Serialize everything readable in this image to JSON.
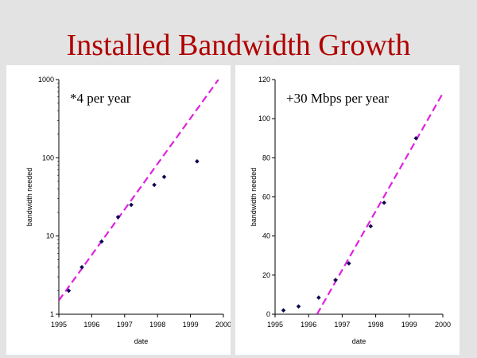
{
  "slide": {
    "title": "Installed Bandwidth Growth"
  },
  "colors": {
    "title": "#b00000",
    "fit_line": "#e020e0",
    "points": "#0a0a50",
    "background": "#e3e3e3",
    "panel": "#ffffff"
  },
  "chart_data": [
    {
      "type": "scatter",
      "scale": "log",
      "annotation": "*4 per year",
      "xlabel": "date",
      "ylabel": "bandwidth needed",
      "xlim": [
        1995,
        2000
      ],
      "ylim": [
        1,
        1000
      ],
      "x_ticks": [
        1995,
        1996,
        1997,
        1998,
        1999,
        2000
      ],
      "y_ticks": [
        1,
        10,
        100,
        1000
      ],
      "x_tick_labels": [
        "1995",
        "1996",
        "1997",
        "1998",
        "1999",
        "2000"
      ],
      "y_tick_labels": [
        "1",
        "10",
        "100",
        "1000"
      ],
      "points": [
        {
          "x": 1995.3,
          "y": 2
        },
        {
          "x": 1995.7,
          "y": 4
        },
        {
          "x": 1996.3,
          "y": 8.5
        },
        {
          "x": 1996.8,
          "y": 17.5
        },
        {
          "x": 1997.2,
          "y": 25
        },
        {
          "x": 1997.9,
          "y": 45
        },
        {
          "x": 1998.2,
          "y": 57
        },
        {
          "x": 1999.2,
          "y": 90
        }
      ],
      "fit_line": {
        "x": [
          1995,
          1999.85
        ],
        "y": [
          1.5,
          1000
        ]
      }
    },
    {
      "type": "scatter",
      "scale": "linear",
      "annotation": "+30 Mbps per year",
      "xlabel": "date",
      "ylabel": "bandwidth needed",
      "xlim": [
        1995,
        2000
      ],
      "ylim": [
        0,
        120
      ],
      "x_ticks": [
        1995,
        1996,
        1997,
        1998,
        1999,
        2000
      ],
      "y_ticks": [
        0,
        20,
        40,
        60,
        80,
        100,
        120
      ],
      "x_tick_labels": [
        "1995",
        "1996",
        "1997",
        "1998",
        "1999",
        "2000"
      ],
      "y_tick_labels": [
        "0",
        "20",
        "40",
        "60",
        "80",
        "100",
        "120"
      ],
      "points": [
        {
          "x": 1995.25,
          "y": 2
        },
        {
          "x": 1995.7,
          "y": 4
        },
        {
          "x": 1996.3,
          "y": 8.5
        },
        {
          "x": 1996.8,
          "y": 17.5
        },
        {
          "x": 1997.2,
          "y": 26
        },
        {
          "x": 1997.85,
          "y": 45
        },
        {
          "x": 1998.25,
          "y": 57
        },
        {
          "x": 1999.2,
          "y": 90
        }
      ],
      "fit_line": {
        "x": [
          1996.25,
          2000
        ],
        "y": [
          0,
          113
        ]
      }
    }
  ]
}
